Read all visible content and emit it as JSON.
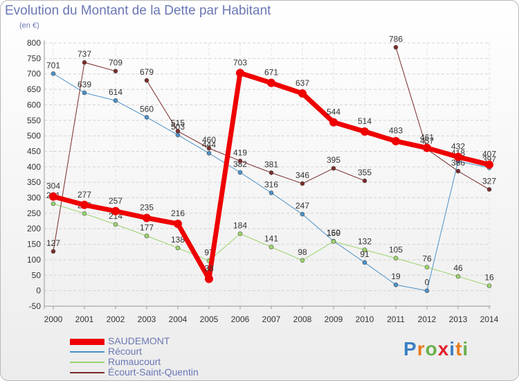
{
  "title": "Evolution du Montant de la Dette par Habitant",
  "subtitle": "(en €)",
  "logo": {
    "text": "Proxiti",
    "letter_colors": [
      "#3b7fc4",
      "#e87b1e",
      "#6ab04c",
      "#e2202b",
      "#3b7fc4",
      "#e87b1e",
      "#6ab04c"
    ]
  },
  "chart_data": {
    "type": "line",
    "title": "Evolution du Montant de la Dette par Habitant",
    "ylabel": "(en €)",
    "xlabel": "",
    "categories": [
      "2000",
      "2001",
      "2002",
      "2003",
      "2004",
      "2005",
      "2006",
      "2007",
      "2008",
      "2009",
      "2010",
      "2011",
      "2012",
      "2013",
      "2014"
    ],
    "ylim": [
      -50,
      800
    ],
    "yticks": [
      -50,
      0,
      50,
      100,
      150,
      200,
      250,
      300,
      350,
      400,
      450,
      500,
      550,
      600,
      650,
      700,
      750,
      800
    ],
    "grid": "horizontal-dashed",
    "legend": "bottom-left",
    "series": [
      {
        "name": "Récourt",
        "color": "#4a90c8",
        "width": 1,
        "values": [
          701,
          639,
          614,
          560,
          503,
          444,
          382,
          316,
          247,
          160,
          91,
          19,
          0,
          418,
          397
        ],
        "labels": [
          "701",
          "639",
          "614",
          "560",
          "503",
          "444",
          "382",
          "316",
          "247",
          "160",
          "91",
          "19",
          "0",
          "418",
          "397"
        ]
      },
      {
        "name": "Rumaucourt",
        "color": "#9ad46a",
        "width": 1,
        "values": [
          281,
          249,
          214,
          177,
          138,
          97,
          184,
          141,
          98,
          159,
          132,
          105,
          76,
          46,
          16
        ],
        "labels": [
          "281",
          "249",
          "214",
          "177",
          "138",
          "97",
          "184",
          "141",
          "98",
          "159",
          "132",
          "105",
          "76",
          "46",
          "16"
        ]
      },
      {
        "name": "Écourt-Saint-Quentin",
        "color": "#7a2a2a",
        "width": 1,
        "values": [
          127,
          737,
          709,
          679,
          515,
          460,
          419,
          381,
          346,
          395,
          355,
          786,
          457,
          386,
          327
        ],
        "labels": [
          "127",
          "737",
          "709",
          "679",
          "515",
          "460",
          "419",
          "381",
          "346",
          "395",
          "355",
          "786",
          "457",
          "386",
          "327"
        ],
        "gaps_after": [
          2,
          10
        ]
      },
      {
        "name": "SAUDEMONT",
        "color": "#ee0000",
        "width": 7,
        "values": [
          304,
          277,
          257,
          235,
          216,
          38,
          703,
          671,
          637,
          544,
          514,
          483,
          461,
          432,
          407
        ],
        "labels": [
          "304",
          "277",
          "257",
          "235",
          "216",
          "38",
          "703",
          "671",
          "637",
          "544",
          "514",
          "483",
          "461",
          "432",
          "407"
        ]
      }
    ]
  }
}
